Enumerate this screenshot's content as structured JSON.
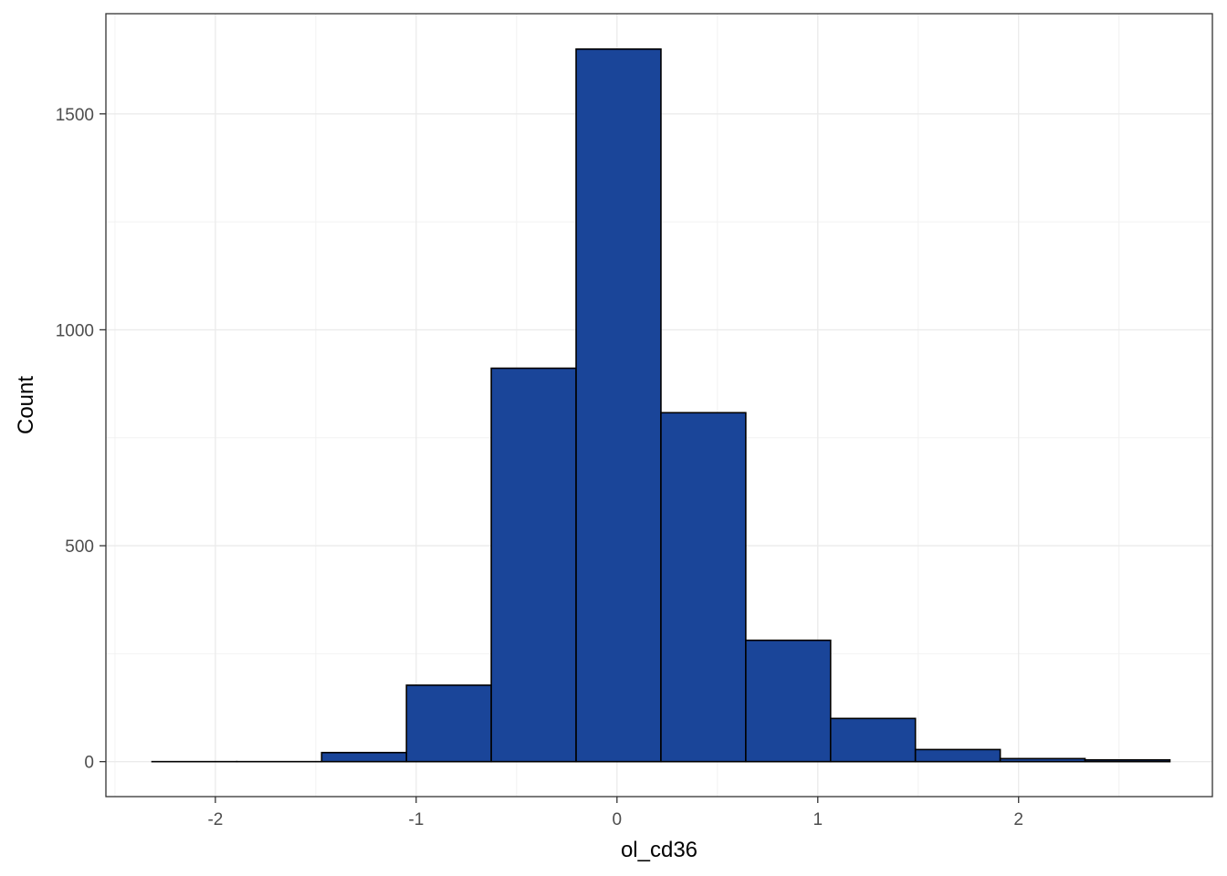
{
  "chart_data": {
    "type": "bar",
    "subtype": "histogram",
    "title": "",
    "xlabel": "ol_cd36",
    "ylabel": "Count",
    "xlim": [
      -2.5451,
      2.9651
    ],
    "ylim": [
      -81,
      1732
    ],
    "x_ticks": [
      -2,
      -1,
      0,
      1,
      2
    ],
    "y_ticks": [
      0,
      500,
      1000,
      1500
    ],
    "x_tick_labels": [
      "-2",
      "-1",
      "0",
      "1",
      "2"
    ],
    "y_tick_labels": [
      "0",
      "500",
      "1000",
      "1500"
    ],
    "grid": true,
    "legend": "none",
    "bins": [
      {
        "x0": -2.3155,
        "x1": -1.8931,
        "count": 0
      },
      {
        "x0": -1.8931,
        "x1": -1.4707,
        "count": 0
      },
      {
        "x0": -1.4707,
        "x1": -1.0483,
        "count": 21
      },
      {
        "x0": -1.0483,
        "x1": -0.6259,
        "count": 177
      },
      {
        "x0": -0.6259,
        "x1": -0.2035,
        "count": 911
      },
      {
        "x0": -0.2035,
        "x1": 0.2189,
        "count": 1650
      },
      {
        "x0": 0.2189,
        "x1": 0.6413,
        "count": 808
      },
      {
        "x0": 0.6413,
        "x1": 1.0637,
        "count": 281
      },
      {
        "x0": 1.0637,
        "x1": 1.4861,
        "count": 100
      },
      {
        "x0": 1.4861,
        "x1": 1.9085,
        "count": 28
      },
      {
        "x0": 1.9085,
        "x1": 2.3309,
        "count": 7
      },
      {
        "x0": 2.3309,
        "x1": 2.7533,
        "count": 4
      }
    ],
    "colors": {
      "bar_fill": "#1A4599",
      "bar_stroke": "#000000",
      "grid_major": "#EBEBEB",
      "grid_minor": "#F2F2F2",
      "panel_border": "#333333",
      "tick_text": "#4D4D4D",
      "title_text": "#000000"
    }
  }
}
